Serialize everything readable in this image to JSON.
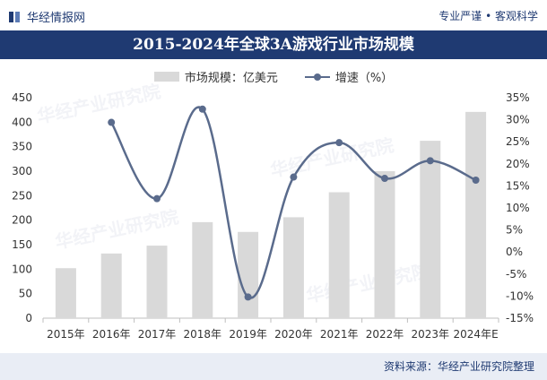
{
  "header": {
    "brand": "华经情报网",
    "slogan": "专业严谨 • 客观科学",
    "brand_icon": "brand-logo-icon"
  },
  "title": "2015-2024年全球3A游戏行业市场规模",
  "source": "资料来源：华经产业研究院整理",
  "watermark": "华经产业研究院",
  "chart_data": {
    "type": "bar",
    "title": "2015-2024年全球3A游戏行业市场规模",
    "categories": [
      "2015年",
      "2016年",
      "2017年",
      "2018年",
      "2019年",
      "2020年",
      "2021年",
      "2022年",
      "2023年",
      "2024年E"
    ],
    "series": [
      {
        "name": "市场规模：亿美元",
        "type": "bar",
        "axis": "left",
        "color": "#d9d9d9",
        "values": [
          102,
          132,
          148,
          196,
          176,
          206,
          257,
          300,
          362,
          421
        ]
      },
      {
        "name": "增速（%）",
        "type": "line",
        "axis": "right",
        "color": "#5a6b8c",
        "values": [
          null,
          29.4,
          12.1,
          32.4,
          -10.2,
          17.0,
          24.8,
          16.7,
          20.7,
          16.3
        ]
      }
    ],
    "left_axis": {
      "min": 0,
      "max": 450,
      "step": 50,
      "ticks": [
        "0",
        "50",
        "100",
        "150",
        "200",
        "250",
        "300",
        "350",
        "400",
        "450"
      ]
    },
    "right_axis": {
      "min": -15,
      "max": 35,
      "step": 5,
      "ticks": [
        "-15%",
        "-10%",
        "-5%",
        "0%",
        "5%",
        "10%",
        "15%",
        "20%",
        "25%",
        "30%",
        "35%"
      ]
    },
    "legend_position": "top-center",
    "grid": false
  }
}
